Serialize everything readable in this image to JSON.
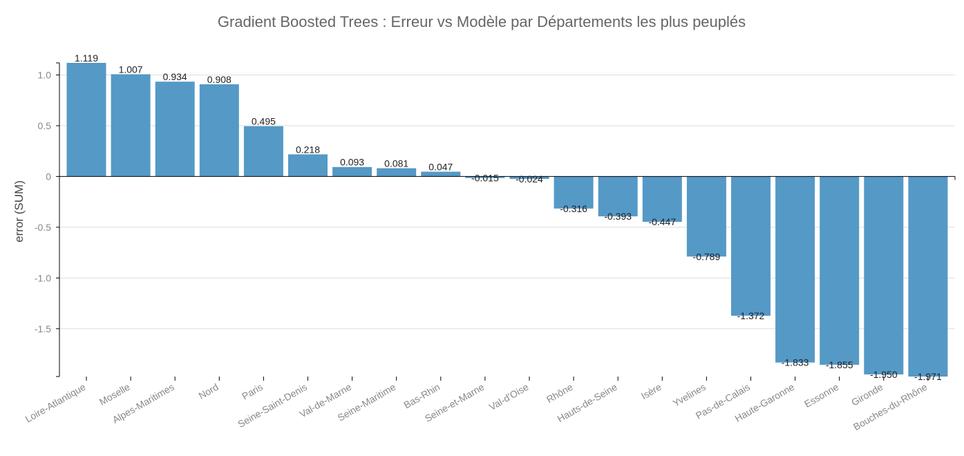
{
  "chart_data": {
    "type": "bar",
    "title": "Gradient Boosted Trees : Erreur vs Modèle par Départements les plus peuplés",
    "xlabel": "",
    "ylabel": "error (SUM)",
    "ylim": [
      -1.971,
      1.119
    ],
    "yticks": [
      -1.5,
      -1.0,
      -0.5,
      0,
      0.5,
      1.0
    ],
    "ytick_labels": [
      "-1.5",
      "-1.0",
      "-0.5",
      "0",
      "0.5",
      "1.0"
    ],
    "categories": [
      "Loire-Atlantique",
      "Moselle",
      "Alpes-Maritimes",
      "Nord",
      "Paris",
      "Seine-Saint-Denis",
      "Val-de-Marne",
      "Seine-Maritime",
      "Bas-Rhin",
      "Seine-et-Marne",
      "Val-d'Oise",
      "Rhône",
      "Hauts-de-Seine",
      "Isère",
      "Yvelines",
      "Pas-de-Calais",
      "Haute-Garonne",
      "Essonne",
      "Gironde",
      "Bouches-du-Rhône"
    ],
    "values": [
      1.119,
      1.007,
      0.934,
      0.908,
      0.495,
      0.218,
      0.093,
      0.081,
      0.047,
      -0.015,
      -0.024,
      -0.316,
      -0.393,
      -0.447,
      -0.789,
      -1.372,
      -1.833,
      -1.855,
      -1.95,
      -1.971
    ],
    "value_labels": [
      "1.119",
      "1.007",
      "0.934",
      "0.908",
      "0.495",
      "0.218",
      "0.093",
      "0.081",
      "0.047",
      "-0.015",
      "-0.024",
      "-0.316",
      "-0.393",
      "-0.447",
      "-0.789",
      "-1.372",
      "-1.833",
      "-1.855",
      "-1.950",
      "-1.971"
    ],
    "grid": true,
    "legend": "none",
    "bar_color": "#5599c7"
  }
}
